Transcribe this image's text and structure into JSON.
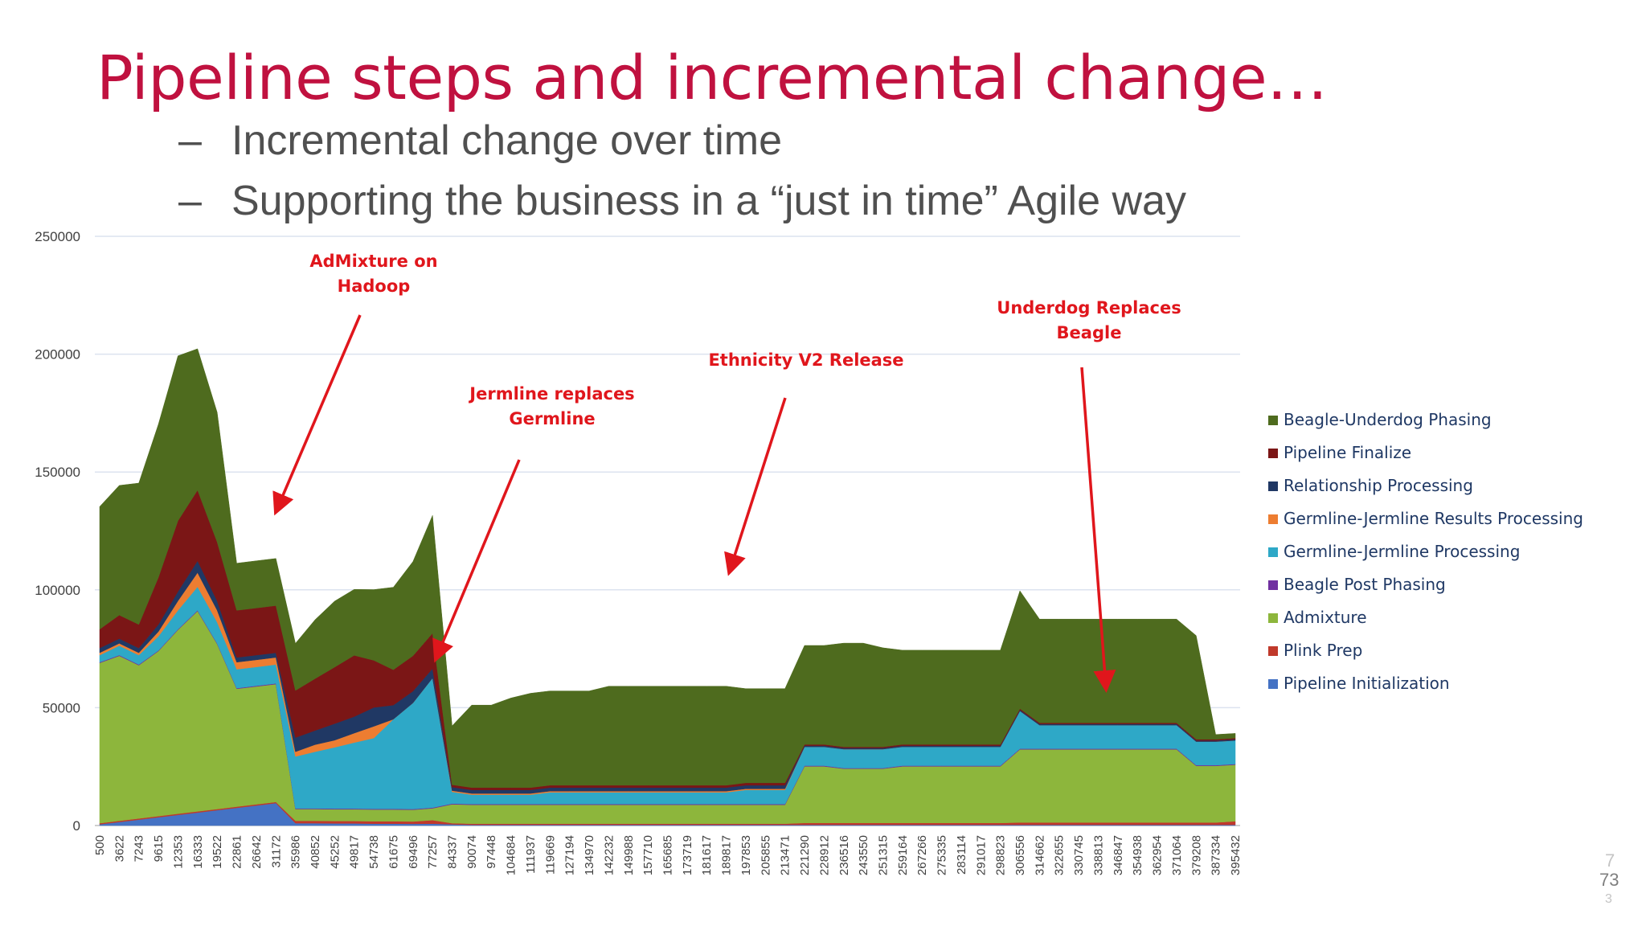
{
  "slide": {
    "title": "Pipeline steps and incremental change…",
    "bullets": [
      {
        "dash": "–",
        "text": "Incremental change over time"
      },
      {
        "dash": "–",
        "text": "Supporting the business in a “just in time” Agile way"
      }
    ],
    "page_number": "73",
    "page_number_ghost": "7",
    "page_number_ghost2": "3"
  },
  "colors": {
    "title": "#c0113f",
    "annotation": "#e0161c",
    "legend_text": "#1f3864",
    "bullet_text": "#505050"
  },
  "chart_data": {
    "type": "area",
    "stacked": true,
    "ylim": [
      0,
      250000
    ],
    "yticks": [
      0,
      50000,
      100000,
      150000,
      200000,
      250000
    ],
    "grid": true,
    "legend_position": "right",
    "x_tick_labels": [
      "500",
      "3622",
      "7243",
      "9615",
      "12353",
      "16333",
      "19522",
      "22861",
      "26642",
      "31172",
      "35986",
      "40852",
      "45252",
      "49817",
      "54738",
      "61675",
      "69496",
      "77257",
      "84337",
      "90074",
      "97448",
      "104684",
      "111937",
      "119669",
      "127194",
      "134970",
      "142232",
      "149988",
      "157710",
      "165685",
      "173719",
      "181617",
      "189817",
      "197853",
      "205855",
      "213471",
      "221290",
      "228912",
      "236516",
      "243550",
      "251315",
      "259164",
      "267266",
      "275335",
      "283114",
      "291017",
      "298823",
      "306556",
      "314662",
      "322655",
      "330745",
      "338813",
      "346847",
      "354938",
      "362954",
      "371064",
      "379208",
      "387334",
      "395432"
    ],
    "series_legend_order": [
      "Beagle-Underdog Phasing",
      "Pipeline Finalize",
      "Relationship Processing",
      "Germline-Jermline Results Processing",
      "Germline-Jermline Processing",
      "Beagle Post Phasing",
      "Admixture",
      "Plink Prep",
      "Pipeline Initialization"
    ],
    "series": [
      {
        "name": "Pipeline Initialization",
        "color": "#4472c4",
        "values": [
          500,
          1500,
          2500,
          3500,
          4500,
          5500,
          6500,
          7500,
          8500,
          9500,
          1000,
          1000,
          900,
          900,
          800,
          800,
          700,
          800,
          500,
          300,
          300,
          300,
          300,
          300,
          300,
          300,
          300,
          300,
          300,
          300,
          300,
          300,
          300,
          300,
          300,
          300,
          300,
          300,
          300,
          300,
          300,
          300,
          300,
          300,
          300,
          300,
          300,
          300,
          300,
          300,
          300,
          300,
          300,
          300,
          300,
          300,
          300,
          300,
          300
        ]
      },
      {
        "name": "Plink Prep",
        "color": "#c0392b",
        "values": [
          500,
          500,
          500,
          500,
          500,
          500,
          500,
          500,
          500,
          500,
          1000,
          1000,
          1000,
          1000,
          1000,
          1000,
          1000,
          1500,
          500,
          500,
          500,
          500,
          500,
          500,
          500,
          500,
          500,
          500,
          500,
          500,
          500,
          500,
          500,
          500,
          500,
          500,
          800,
          800,
          800,
          800,
          800,
          800,
          800,
          800,
          800,
          800,
          800,
          1000,
          1000,
          1000,
          1000,
          1000,
          1000,
          1000,
          1000,
          1000,
          1000,
          1000,
          1500
        ]
      },
      {
        "name": "Admixture",
        "color": "#8db63c",
        "values": [
          68000,
          70000,
          65000,
          70000,
          78000,
          85000,
          70000,
          50000,
          50000,
          50000,
          5000,
          5000,
          5000,
          5000,
          5000,
          5000,
          5000,
          5000,
          8000,
          8000,
          8000,
          8000,
          8000,
          8000,
          8000,
          8000,
          8000,
          8000,
          8000,
          8000,
          8000,
          8000,
          8000,
          8000,
          8000,
          8000,
          24000,
          24000,
          23000,
          23000,
          23000,
          24000,
          24000,
          24000,
          24000,
          24000,
          24000,
          31000,
          31000,
          31000,
          31000,
          31000,
          31000,
          31000,
          31000,
          31000,
          24000,
          24000,
          24000
        ]
      },
      {
        "name": "Beagle Post Phasing",
        "color": "#7030a0",
        "values": [
          300,
          300,
          300,
          300,
          300,
          300,
          300,
          300,
          300,
          300,
          300,
          300,
          300,
          300,
          300,
          300,
          300,
          300,
          300,
          300,
          300,
          300,
          300,
          300,
          300,
          300,
          300,
          300,
          300,
          300,
          300,
          300,
          300,
          300,
          300,
          300,
          300,
          300,
          300,
          300,
          300,
          300,
          300,
          300,
          300,
          300,
          300,
          300,
          300,
          300,
          300,
          300,
          300,
          300,
          300,
          300,
          300,
          300,
          300
        ]
      },
      {
        "name": "Germline-Jermline Processing",
        "color": "#2ea8c7",
        "values": [
          3000,
          4000,
          4000,
          6000,
          8000,
          10000,
          9000,
          8000,
          8000,
          8000,
          22000,
          24000,
          26000,
          28000,
          30000,
          38000,
          45000,
          55000,
          5000,
          4000,
          4000,
          4000,
          4000,
          5000,
          5000,
          5000,
          5000,
          5000,
          5000,
          5000,
          5000,
          5000,
          5000,
          6000,
          6000,
          6000,
          8000,
          8000,
          8000,
          8000,
          8000,
          8000,
          8000,
          8000,
          8000,
          8000,
          8000,
          16000,
          10000,
          10000,
          10000,
          10000,
          10000,
          10000,
          10000,
          10000,
          10000,
          10000,
          10000
        ]
      },
      {
        "name": "Germline-Jermline Results Processing",
        "color": "#ed7d31",
        "values": [
          1000,
          1000,
          1000,
          2000,
          4000,
          6000,
          5000,
          3000,
          3000,
          3000,
          2000,
          3000,
          3000,
          4000,
          5000,
          0,
          0,
          0,
          500,
          500,
          500,
          500,
          500,
          500,
          500,
          500,
          500,
          500,
          500,
          500,
          500,
          500,
          500,
          500,
          500,
          500,
          0,
          0,
          0,
          0,
          0,
          0,
          0,
          0,
          0,
          0,
          0,
          0,
          0,
          0,
          0,
          0,
          0,
          0,
          0,
          0,
          0,
          0,
          0
        ]
      },
      {
        "name": "Relationship Processing",
        "color": "#203864",
        "values": [
          2000,
          2000,
          2000,
          3000,
          4000,
          5000,
          4000,
          2000,
          2000,
          2000,
          6000,
          6000,
          7000,
          7000,
          8000,
          6000,
          5000,
          4000,
          1500,
          1500,
          1500,
          1500,
          1500,
          1500,
          1500,
          1500,
          1500,
          1500,
          1500,
          1500,
          1500,
          1500,
          1500,
          1500,
          1500,
          1500,
          500,
          500,
          500,
          500,
          500,
          500,
          500,
          500,
          500,
          500,
          500,
          500,
          500,
          500,
          500,
          500,
          500,
          500,
          500,
          500,
          500,
          500,
          500
        ]
      },
      {
        "name": "Pipeline Finalize",
        "color": "#7b1616",
        "values": [
          8000,
          10000,
          10000,
          20000,
          30000,
          30000,
          25000,
          20000,
          20000,
          20000,
          20000,
          22000,
          24000,
          26000,
          20000,
          15000,
          15000,
          15000,
          1000,
          1000,
          1000,
          1000,
          1000,
          1000,
          1000,
          1000,
          1000,
          1000,
          1000,
          1000,
          1000,
          1000,
          1000,
          1000,
          1000,
          1000,
          500,
          500,
          500,
          500,
          500,
          500,
          500,
          500,
          500,
          500,
          500,
          500,
          500,
          500,
          500,
          500,
          500,
          500,
          500,
          500,
          500,
          500,
          500
        ]
      },
      {
        "name": "Beagle-Underdog Phasing",
        "color": "#4e6b1e",
        "values": [
          52000,
          55000,
          60000,
          65000,
          70000,
          60000,
          55000,
          20000,
          20000,
          20000,
          20000,
          25000,
          28000,
          28000,
          30000,
          35000,
          40000,
          50000,
          25000,
          35000,
          35000,
          38000,
          40000,
          40000,
          40000,
          40000,
          42000,
          42000,
          42000,
          42000,
          42000,
          42000,
          42000,
          40000,
          40000,
          40000,
          42000,
          42000,
          44000,
          44000,
          42000,
          40000,
          40000,
          40000,
          40000,
          40000,
          40000,
          50000,
          44000,
          44000,
          44000,
          44000,
          44000,
          44000,
          44000,
          44000,
          44000,
          2000,
          2000
        ]
      }
    ],
    "annotations": [
      {
        "text": "AdMixture on\nHadoop"
      },
      {
        "text": "Jermline replaces\nGermline"
      },
      {
        "text": "Ethnicity V2 Release"
      },
      {
        "text": "Underdog Replaces\nBeagle"
      }
    ]
  }
}
